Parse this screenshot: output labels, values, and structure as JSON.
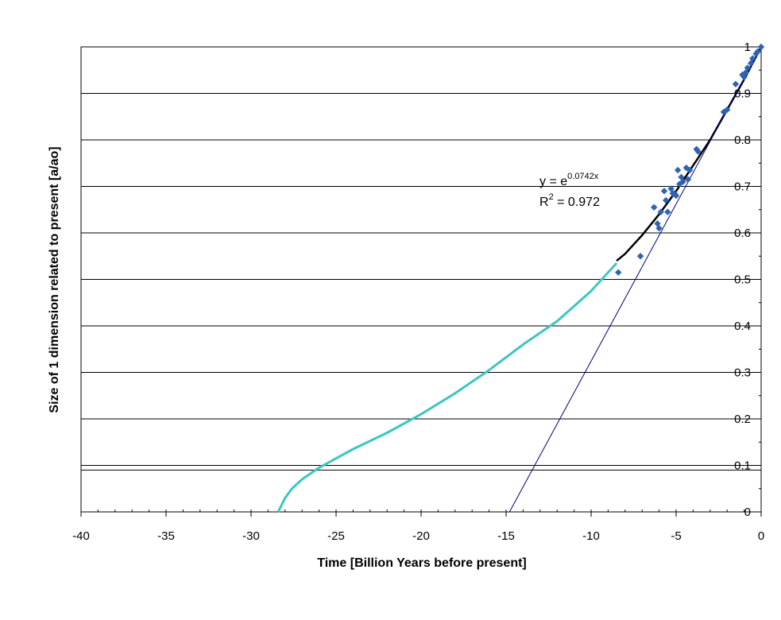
{
  "chart_data": {
    "type": "scatter",
    "xlabel": "Time [Billion Years before present]",
    "ylabel": "Size of 1 dimension related to present [a/ao]",
    "xlim": [
      -40,
      0
    ],
    "ylim": [
      0,
      1
    ],
    "x_ticks": [
      "-40",
      "-35",
      "-30",
      "-25",
      "-20",
      "-15",
      "-10",
      "-5",
      "0"
    ],
    "y_ticks": [
      "0",
      "0.1",
      "0.2",
      "0.3",
      "0.4",
      "0.5",
      "0.6",
      "0.7",
      "0.8",
      "0.9",
      "1"
    ],
    "grid": "horizontal",
    "extra_hlines": [
      0.09
    ],
    "colors": {
      "points": "#2e63b4",
      "fit": "#000000",
      "extrapolation": "#3cc6c0",
      "linear": "#000080"
    },
    "series": [
      {
        "kind": "points",
        "x": [
          0,
          -0.2,
          -0.3,
          -0.5,
          -0.6,
          -0.8,
          -0.9,
          -1.0,
          -1.1,
          -1.5,
          -2.0,
          -2.2,
          -3.7,
          -3.8,
          -4.2,
          -4.3,
          -4.4,
          -4.6,
          -4.7,
          -4.8,
          -4.9,
          -5.0,
          -5.1,
          -5.2,
          -5.3,
          -5.5,
          -5.6,
          -5.7,
          -5.9,
          -6.0,
          -6.1,
          -6.3,
          -7.1,
          -8.4
        ],
        "y": [
          1.0,
          0.99,
          0.985,
          0.975,
          0.965,
          0.955,
          0.945,
          0.935,
          0.94,
          0.92,
          0.865,
          0.86,
          0.775,
          0.78,
          0.735,
          0.715,
          0.74,
          0.71,
          0.72,
          0.705,
          0.735,
          0.68,
          0.685,
          0.685,
          0.695,
          0.645,
          0.67,
          0.69,
          0.645,
          0.61,
          0.62,
          0.655,
          0.55,
          0.515
        ]
      },
      {
        "kind": "fit-line",
        "x": [
          -8.5,
          -8,
          -7,
          -6,
          -5,
          -4,
          -3,
          -2,
          -1,
          0
        ],
        "y": [
          0.54,
          0.555,
          0.595,
          0.64,
          0.69,
          0.745,
          0.8,
          0.865,
          0.93,
          1.0
        ]
      },
      {
        "kind": "extrapolation-line",
        "x": [
          -28.4,
          -28.2,
          -28.0,
          -27.6,
          -27.0,
          -26.0,
          -25.0,
          -24.0,
          -22.0,
          -20.0,
          -18.0,
          -16.0,
          -14.0,
          -12.0,
          -10.0,
          -8.5
        ],
        "y": [
          0.0,
          0.015,
          0.03,
          0.05,
          0.07,
          0.095,
          0.115,
          0.135,
          0.17,
          0.21,
          0.255,
          0.305,
          0.36,
          0.41,
          0.475,
          0.535
        ]
      },
      {
        "kind": "linear-line",
        "x": [
          -14.8,
          0
        ],
        "y": [
          0,
          1.0
        ]
      }
    ],
    "annotation": {
      "eq_prefix": "y = e",
      "eq_exponent": "0.0742x",
      "r2_prefix": "R",
      "r2_sup": "2",
      "r2_suffix": " = 0.972"
    }
  }
}
